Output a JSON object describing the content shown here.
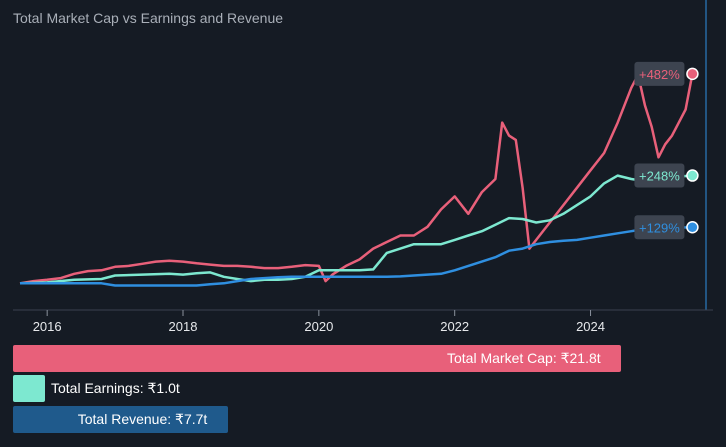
{
  "chart_data": {
    "type": "line",
    "title": "Total Market Cap vs Earnings and Revenue",
    "xlabel": "",
    "ylabel": "",
    "x_ticks": [
      "2016",
      "2018",
      "2020",
      "2022",
      "2024"
    ],
    "xlim": [
      2015.6,
      2025.7
    ],
    "ylim": [
      -20,
      560
    ],
    "grid": false,
    "series": [
      {
        "name": "Market Cap",
        "color": "#e8607a",
        "end_label": "+482%",
        "points": [
          [
            2015.6,
            0
          ],
          [
            2015.8,
            5
          ],
          [
            2016.0,
            8
          ],
          [
            2016.2,
            12
          ],
          [
            2016.4,
            22
          ],
          [
            2016.6,
            28
          ],
          [
            2016.8,
            30
          ],
          [
            2017.0,
            38
          ],
          [
            2017.2,
            40
          ],
          [
            2017.4,
            45
          ],
          [
            2017.6,
            50
          ],
          [
            2017.8,
            52
          ],
          [
            2018.0,
            50
          ],
          [
            2018.2,
            46
          ],
          [
            2018.4,
            43
          ],
          [
            2018.6,
            40
          ],
          [
            2018.8,
            40
          ],
          [
            2019.0,
            38
          ],
          [
            2019.2,
            35
          ],
          [
            2019.4,
            35
          ],
          [
            2019.6,
            38
          ],
          [
            2019.8,
            42
          ],
          [
            2020.0,
            40
          ],
          [
            2020.1,
            5
          ],
          [
            2020.2,
            20
          ],
          [
            2020.4,
            40
          ],
          [
            2020.6,
            55
          ],
          [
            2020.8,
            80
          ],
          [
            2021.0,
            95
          ],
          [
            2021.2,
            110
          ],
          [
            2021.4,
            110
          ],
          [
            2021.6,
            130
          ],
          [
            2021.8,
            170
          ],
          [
            2022.0,
            200
          ],
          [
            2022.2,
            160
          ],
          [
            2022.4,
            210
          ],
          [
            2022.6,
            240
          ],
          [
            2022.7,
            370
          ],
          [
            2022.8,
            340
          ],
          [
            2022.9,
            330
          ],
          [
            2023.0,
            220
          ],
          [
            2023.1,
            80
          ],
          [
            2023.2,
            100
          ],
          [
            2023.4,
            140
          ],
          [
            2023.6,
            180
          ],
          [
            2023.8,
            220
          ],
          [
            2024.0,
            260
          ],
          [
            2024.2,
            300
          ],
          [
            2024.4,
            370
          ],
          [
            2024.5,
            410
          ],
          [
            2024.6,
            450
          ],
          [
            2024.7,
            480
          ],
          [
            2024.8,
            410
          ],
          [
            2024.9,
            360
          ],
          [
            2025.0,
            290
          ],
          [
            2025.1,
            320
          ],
          [
            2025.2,
            340
          ],
          [
            2025.3,
            370
          ],
          [
            2025.4,
            400
          ],
          [
            2025.5,
            482
          ]
        ]
      },
      {
        "name": "Earnings",
        "color": "#7de8d0",
        "end_label": "+248%",
        "points": [
          [
            2015.6,
            0
          ],
          [
            2016.0,
            2
          ],
          [
            2016.4,
            8
          ],
          [
            2016.8,
            10
          ],
          [
            2017.0,
            18
          ],
          [
            2017.4,
            20
          ],
          [
            2017.8,
            22
          ],
          [
            2018.0,
            20
          ],
          [
            2018.2,
            23
          ],
          [
            2018.4,
            25
          ],
          [
            2018.6,
            15
          ],
          [
            2018.8,
            10
          ],
          [
            2019.0,
            5
          ],
          [
            2019.2,
            8
          ],
          [
            2019.4,
            8
          ],
          [
            2019.6,
            10
          ],
          [
            2019.8,
            15
          ],
          [
            2020.0,
            30
          ],
          [
            2020.2,
            30
          ],
          [
            2020.4,
            30
          ],
          [
            2020.6,
            30
          ],
          [
            2020.8,
            32
          ],
          [
            2021.0,
            70
          ],
          [
            2021.2,
            80
          ],
          [
            2021.4,
            90
          ],
          [
            2021.6,
            90
          ],
          [
            2021.8,
            90
          ],
          [
            2022.0,
            100
          ],
          [
            2022.2,
            110
          ],
          [
            2022.4,
            120
          ],
          [
            2022.6,
            135
          ],
          [
            2022.8,
            150
          ],
          [
            2023.0,
            148
          ],
          [
            2023.2,
            140
          ],
          [
            2023.4,
            145
          ],
          [
            2023.6,
            160
          ],
          [
            2023.8,
            180
          ],
          [
            2024.0,
            200
          ],
          [
            2024.2,
            230
          ],
          [
            2024.4,
            248
          ],
          [
            2024.6,
            240
          ],
          [
            2024.8,
            235
          ],
          [
            2025.0,
            240
          ],
          [
            2025.2,
            245
          ],
          [
            2025.5,
            248
          ]
        ]
      },
      {
        "name": "Revenue",
        "color": "#2f8fe0",
        "end_label": "+129%",
        "points": [
          [
            2015.6,
            0
          ],
          [
            2016.0,
            0
          ],
          [
            2016.4,
            0
          ],
          [
            2016.8,
            0
          ],
          [
            2017.0,
            -5
          ],
          [
            2017.4,
            -5
          ],
          [
            2017.8,
            -5
          ],
          [
            2018.0,
            -5
          ],
          [
            2018.2,
            -5
          ],
          [
            2018.4,
            -2
          ],
          [
            2018.6,
            0
          ],
          [
            2018.8,
            5
          ],
          [
            2019.0,
            10
          ],
          [
            2019.2,
            12
          ],
          [
            2019.4,
            14
          ],
          [
            2019.6,
            15
          ],
          [
            2019.8,
            15
          ],
          [
            2020.0,
            15
          ],
          [
            2020.2,
            15
          ],
          [
            2020.4,
            15
          ],
          [
            2020.6,
            15
          ],
          [
            2020.8,
            15
          ],
          [
            2021.0,
            15
          ],
          [
            2021.2,
            16
          ],
          [
            2021.4,
            18
          ],
          [
            2021.6,
            20
          ],
          [
            2021.8,
            22
          ],
          [
            2022.0,
            30
          ],
          [
            2022.2,
            40
          ],
          [
            2022.4,
            50
          ],
          [
            2022.6,
            60
          ],
          [
            2022.8,
            75
          ],
          [
            2023.0,
            80
          ],
          [
            2023.2,
            90
          ],
          [
            2023.4,
            95
          ],
          [
            2023.6,
            98
          ],
          [
            2023.8,
            100
          ],
          [
            2024.0,
            105
          ],
          [
            2024.2,
            110
          ],
          [
            2024.4,
            115
          ],
          [
            2024.6,
            120
          ],
          [
            2024.8,
            125
          ],
          [
            2025.0,
            127
          ],
          [
            2025.2,
            128
          ],
          [
            2025.5,
            129
          ]
        ]
      }
    ]
  },
  "totals": [
    {
      "label": "Total Market Cap: ₹21.8t",
      "value": 21.8,
      "color": "#e8607a"
    },
    {
      "label": "Total Earnings: ₹1.0t",
      "value": 1.0,
      "color": "#7de8d0"
    },
    {
      "label": "Total Revenue: ₹7.7t",
      "value": 7.7,
      "color": "#1f5a8c"
    }
  ]
}
